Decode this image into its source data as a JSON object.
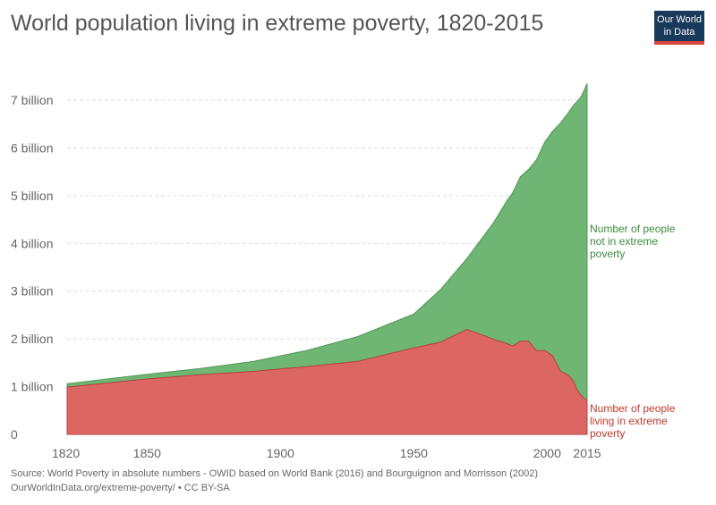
{
  "header": {
    "title": "World population living in extreme poverty, 1820-2015",
    "logo_line1": "Our World",
    "logo_line2": "in Data"
  },
  "colors": {
    "not_poor": "#6fb573",
    "not_poor_stroke": "#4f9a55",
    "poor": "#db6664",
    "poor_stroke": "#b8413f",
    "not_poor_label": "#3d8c3f",
    "poor_label": "#c0392b",
    "grid": "#dddddd",
    "logo_bg": "#1a3a5c",
    "logo_bar": "#d8463c"
  },
  "chart_data": {
    "type": "area",
    "stacked": true,
    "xlim": [
      1820,
      2015
    ],
    "ylim": [
      0,
      7.6
    ],
    "y_unit": "billion",
    "x_ticks": [
      "1820",
      "1850",
      "1900",
      "1950",
      "2000",
      "2015"
    ],
    "y_ticks": [
      "0",
      "1 billion",
      "2 billion",
      "3 billion",
      "4 billion",
      "5 billion",
      "6 billion",
      "7 billion"
    ],
    "grid": "horizontal dashed",
    "x": [
      1820,
      1850,
      1870,
      1890,
      1910,
      1929,
      1950,
      1960,
      1970,
      1980,
      1985,
      1987,
      1990,
      1993,
      1996,
      1999,
      2002,
      2005,
      2008,
      2010,
      2011,
      2012,
      2013,
      2015
    ],
    "series": [
      {
        "name": "Number of people living in extreme poverty",
        "label_lines": [
          "Number of people",
          "living in extreme",
          "poverty"
        ],
        "values": [
          0.99,
          1.16,
          1.25,
          1.32,
          1.42,
          1.53,
          1.81,
          1.93,
          2.2,
          1.99,
          1.9,
          1.85,
          1.95,
          1.95,
          1.75,
          1.76,
          1.65,
          1.32,
          1.24,
          1.1,
          0.96,
          0.87,
          0.8,
          0.71
        ]
      },
      {
        "name": "Number of people not in extreme poverty",
        "label_lines": [
          "Number of people",
          "not in extreme",
          "poverty"
        ],
        "values": [
          0.07,
          0.1,
          0.13,
          0.21,
          0.34,
          0.52,
          0.71,
          1.1,
          1.49,
          2.45,
          3.0,
          3.2,
          3.45,
          3.6,
          4.0,
          4.35,
          4.7,
          5.2,
          5.5,
          5.8,
          6.0,
          6.15,
          6.3,
          6.64
        ]
      }
    ],
    "source_text": "Source: World Poverty in absolute numbers - OWID based on World Bank (2016) and Bourguignon and Morrisson (2002)",
    "license_text": "OurWorldInData.org/extreme-poverty/ • CC BY-SA"
  }
}
